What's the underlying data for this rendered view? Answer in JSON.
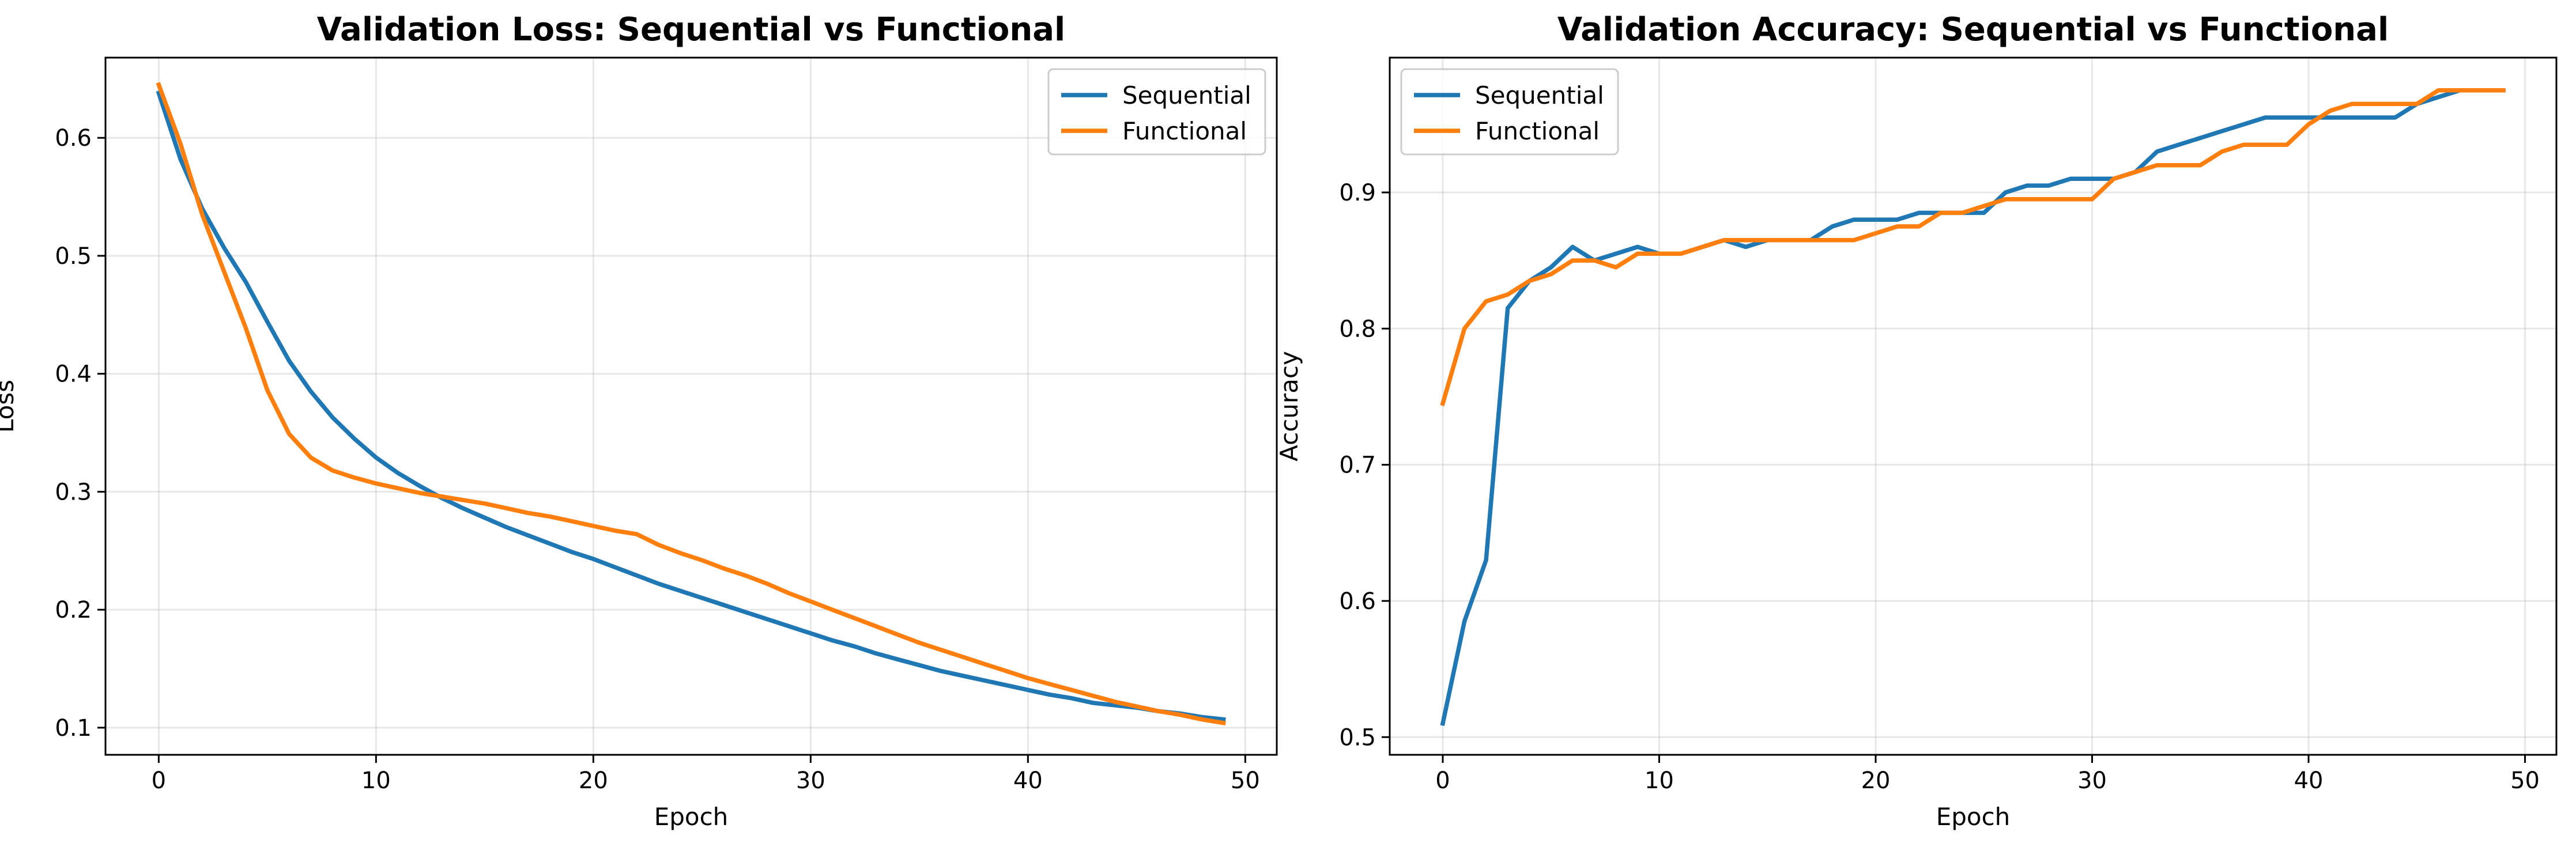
{
  "chart_data": [
    {
      "type": "line",
      "title": "Validation Loss: Sequential vs Functional",
      "xlabel": "Epoch",
      "ylabel": "Loss",
      "xlim": [
        -2.45,
        51.45
      ],
      "ylim": [
        0.077,
        0.668
      ],
      "xticks": [
        0,
        10,
        20,
        30,
        40,
        50
      ],
      "yticks": [
        0.1,
        0.2,
        0.3,
        0.4,
        0.5,
        0.6
      ],
      "grid": true,
      "legend_position": "top-right",
      "x": [
        0,
        1,
        2,
        3,
        4,
        5,
        6,
        7,
        8,
        9,
        10,
        11,
        12,
        13,
        14,
        15,
        16,
        17,
        18,
        19,
        20,
        21,
        22,
        23,
        24,
        25,
        26,
        27,
        28,
        29,
        30,
        31,
        32,
        33,
        34,
        35,
        36,
        37,
        38,
        39,
        40,
        41,
        42,
        43,
        44,
        45,
        46,
        47,
        48,
        49
      ],
      "series": [
        {
          "name": "Sequential",
          "color": "#1f77b4",
          "values": [
            0.638,
            0.582,
            0.54,
            0.507,
            0.478,
            0.444,
            0.411,
            0.385,
            0.363,
            0.345,
            0.329,
            0.316,
            0.305,
            0.295,
            0.286,
            0.278,
            0.27,
            0.263,
            0.256,
            0.249,
            0.243,
            0.236,
            0.229,
            0.222,
            0.216,
            0.21,
            0.204,
            0.198,
            0.192,
            0.186,
            0.18,
            0.174,
            0.169,
            0.163,
            0.158,
            0.153,
            0.148,
            0.144,
            0.14,
            0.136,
            0.132,
            0.128,
            0.125,
            0.121,
            0.119,
            0.117,
            0.114,
            0.112,
            0.109,
            0.107
          ]
        },
        {
          "name": "Functional",
          "color": "#ff7f0e",
          "values": [
            0.645,
            0.595,
            0.535,
            0.487,
            0.439,
            0.386,
            0.349,
            0.329,
            0.318,
            0.312,
            0.307,
            0.303,
            0.299,
            0.296,
            0.293,
            0.29,
            0.286,
            0.282,
            0.279,
            0.275,
            0.271,
            0.267,
            0.264,
            0.255,
            0.248,
            0.242,
            0.235,
            0.229,
            0.222,
            0.214,
            0.207,
            0.2,
            0.193,
            0.186,
            0.179,
            0.172,
            0.166,
            0.16,
            0.154,
            0.148,
            0.142,
            0.137,
            0.132,
            0.127,
            0.122,
            0.118,
            0.114,
            0.111,
            0.107,
            0.104
          ]
        }
      ]
    },
    {
      "type": "line",
      "title": "Validation Accuracy: Sequential vs Functional",
      "xlabel": "Epoch",
      "ylabel": "Accuracy",
      "xlim": [
        -2.45,
        51.45
      ],
      "ylim": [
        0.487,
        0.999
      ],
      "xticks": [
        0,
        10,
        20,
        30,
        40,
        50
      ],
      "yticks": [
        0.5,
        0.6,
        0.7,
        0.8,
        0.9
      ],
      "grid": true,
      "legend_position": "top-left",
      "x": [
        0,
        1,
        2,
        3,
        4,
        5,
        6,
        7,
        8,
        9,
        10,
        11,
        12,
        13,
        14,
        15,
        16,
        17,
        18,
        19,
        20,
        21,
        22,
        23,
        24,
        25,
        26,
        27,
        28,
        29,
        30,
        31,
        32,
        33,
        34,
        35,
        36,
        37,
        38,
        39,
        40,
        41,
        42,
        43,
        44,
        45,
        46,
        47,
        48,
        49
      ],
      "series": [
        {
          "name": "Sequential",
          "color": "#1f77b4",
          "values": [
            0.51,
            0.585,
            0.63,
            0.815,
            0.835,
            0.845,
            0.86,
            0.85,
            0.855,
            0.86,
            0.855,
            0.855,
            0.86,
            0.865,
            0.86,
            0.865,
            0.865,
            0.865,
            0.875,
            0.88,
            0.88,
            0.88,
            0.885,
            0.885,
            0.885,
            0.885,
            0.9,
            0.905,
            0.905,
            0.91,
            0.91,
            0.91,
            0.915,
            0.93,
            0.935,
            0.94,
            0.945,
            0.95,
            0.955,
            0.955,
            0.955,
            0.955,
            0.955,
            0.955,
            0.955,
            0.965,
            0.97,
            0.975,
            0.975,
            0.975
          ]
        },
        {
          "name": "Functional",
          "color": "#ff7f0e",
          "values": [
            0.745,
            0.8,
            0.82,
            0.825,
            0.835,
            0.84,
            0.85,
            0.85,
            0.845,
            0.855,
            0.855,
            0.855,
            0.86,
            0.865,
            0.865,
            0.865,
            0.865,
            0.865,
            0.865,
            0.865,
            0.87,
            0.875,
            0.875,
            0.885,
            0.885,
            0.89,
            0.895,
            0.895,
            0.895,
            0.895,
            0.895,
            0.91,
            0.915,
            0.92,
            0.92,
            0.92,
            0.93,
            0.935,
            0.935,
            0.935,
            0.95,
            0.96,
            0.965,
            0.965,
            0.965,
            0.965,
            0.975,
            0.975,
            0.975,
            0.975
          ]
        }
      ]
    }
  ]
}
